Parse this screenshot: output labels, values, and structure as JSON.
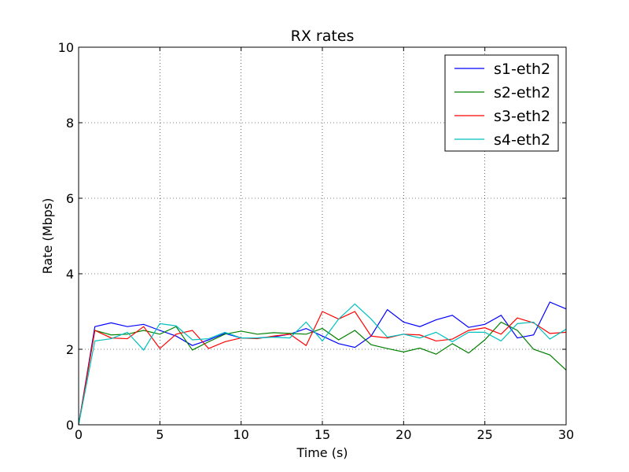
{
  "chart_data": {
    "type": "line",
    "title": "RX rates",
    "xlabel": "Time (s)",
    "ylabel": "Rate (Mbps)",
    "xlim": [
      0,
      30
    ],
    "ylim": [
      0,
      10
    ],
    "xticks": [
      "0",
      "5",
      "10",
      "15",
      "20",
      "25",
      "30"
    ],
    "yticks": [
      "0",
      "2",
      "4",
      "6",
      "8",
      "10"
    ],
    "grid": true,
    "legend_position": "top-right",
    "x": [
      0,
      1,
      2,
      3,
      4,
      5,
      6,
      7,
      8,
      9,
      10,
      11,
      12,
      13,
      14,
      15,
      16,
      17,
      18,
      19,
      20,
      21,
      22,
      23,
      24,
      25,
      26,
      27,
      28,
      29,
      30
    ],
    "series": [
      {
        "name": "s1-eth2",
        "color": "#0000ff",
        "values": [
          0,
          2.6,
          2.7,
          2.6,
          2.66,
          2.5,
          2.35,
          2.1,
          2.25,
          2.42,
          2.3,
          2.3,
          2.33,
          2.4,
          2.55,
          2.35,
          2.15,
          2.05,
          2.35,
          3.05,
          2.72,
          2.6,
          2.78,
          2.9,
          2.58,
          2.66,
          2.9,
          2.3,
          2.38,
          3.25,
          3.07
        ]
      },
      {
        "name": "s2-eth2",
        "color": "#008000",
        "values": [
          0,
          2.5,
          2.38,
          2.4,
          2.5,
          2.4,
          2.6,
          1.98,
          2.2,
          2.4,
          2.48,
          2.4,
          2.44,
          2.42,
          2.4,
          2.55,
          2.25,
          2.5,
          2.12,
          2.02,
          1.93,
          2.03,
          1.87,
          2.15,
          1.9,
          2.25,
          2.72,
          2.5,
          2.0,
          1.85,
          1.45
        ]
      },
      {
        "name": "s3-eth2",
        "color": "#ff0000",
        "values": [
          0,
          2.5,
          2.3,
          2.28,
          2.6,
          2.02,
          2.4,
          2.5,
          2.02,
          2.2,
          2.3,
          2.28,
          2.35,
          2.4,
          2.1,
          3.0,
          2.8,
          3.0,
          2.35,
          2.3,
          2.4,
          2.38,
          2.22,
          2.27,
          2.5,
          2.57,
          2.4,
          2.83,
          2.7,
          2.42,
          2.45
        ]
      },
      {
        "name": "s4-eth2",
        "color": "#00bfbf",
        "values": [
          0,
          2.22,
          2.28,
          2.45,
          1.98,
          2.68,
          2.62,
          2.25,
          2.28,
          2.45,
          2.3,
          2.3,
          2.32,
          2.3,
          2.72,
          2.22,
          2.8,
          3.2,
          2.8,
          2.32,
          2.4,
          2.3,
          2.45,
          2.2,
          2.45,
          2.45,
          2.22,
          2.68,
          2.72,
          2.27,
          2.53
        ]
      }
    ]
  }
}
